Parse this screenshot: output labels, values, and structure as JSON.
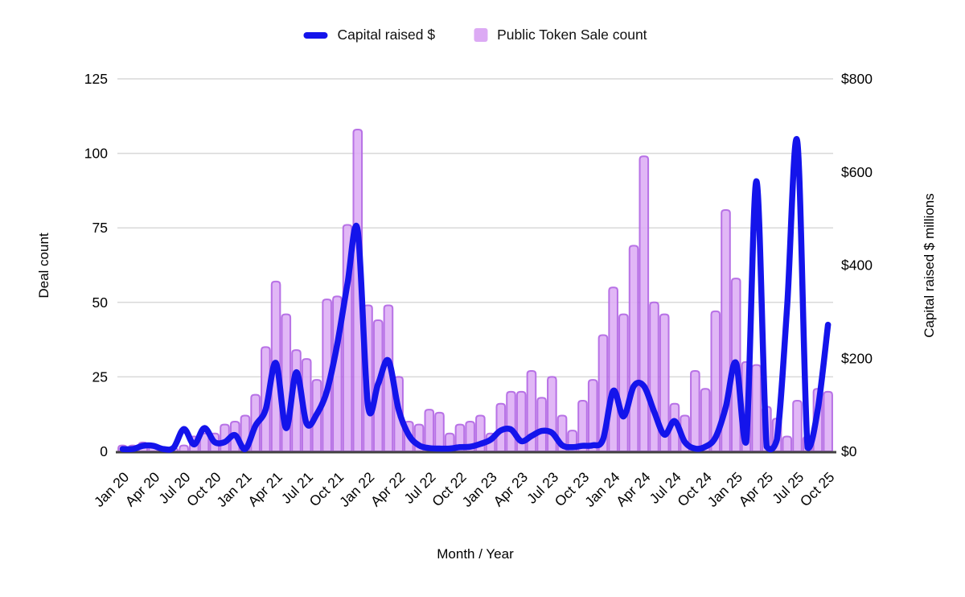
{
  "legend": {
    "items": [
      {
        "label": "Capital raised $",
        "swatch": "line",
        "color": "#1414eb"
      },
      {
        "label": "Public Token Sale count",
        "swatch": "square",
        "color": "#dcaaf4"
      }
    ]
  },
  "axes": {
    "left_title": "Deal count",
    "right_title": "Capital raised $ millions",
    "x_title": "Month / Year"
  },
  "colors": {
    "line": "#1414eb",
    "bar_fill": "#dcaaf4",
    "bar_border": "#b166e3",
    "gridline": "#d9d9d9",
    "axis_line": "#424242",
    "text": "#000000"
  },
  "chart_data": {
    "type": "combo-bar-line",
    "title": "",
    "xlabel": "Month / Year",
    "grid": true,
    "legend_position": "top",
    "x_tick_every": 3,
    "left_axis": {
      "label": "Deal count",
      "min": 0,
      "max": 125,
      "ticks": [
        0,
        25,
        50,
        75,
        100,
        125
      ]
    },
    "right_axis": {
      "label": "Capital raised $ millions",
      "min": 0,
      "max": 800,
      "ticks": [
        0,
        200,
        400,
        600,
        800
      ],
      "tick_labels": [
        "$0",
        "$200",
        "$400",
        "$600",
        "$800"
      ]
    },
    "categories": [
      "Jan 20",
      "Feb 20",
      "Mar 20",
      "Apr 20",
      "May 20",
      "Jun 20",
      "Jul 20",
      "Aug 20",
      "Sep 20",
      "Oct 20",
      "Nov 20",
      "Dec 20",
      "Jan 21",
      "Feb 21",
      "Mar 21",
      "Apr 21",
      "May 21",
      "Jun 21",
      "Jul 21",
      "Aug 21",
      "Sep 21",
      "Oct 21",
      "Nov 21",
      "Dec 21",
      "Jan 22",
      "Feb 22",
      "Mar 22",
      "Apr 22",
      "May 22",
      "Jun 22",
      "Jul 22",
      "Aug 22",
      "Sep 22",
      "Oct 22",
      "Nov 22",
      "Dec 22",
      "Jan 23",
      "Feb 23",
      "Mar 23",
      "Apr 23",
      "May 23",
      "Jun 23",
      "Jul 23",
      "Aug 23",
      "Sep 23",
      "Oct 23",
      "Nov 23",
      "Dec 23",
      "Jan 24",
      "Feb 24",
      "Mar 24",
      "Apr 24",
      "May 24",
      "Jun 24",
      "Jul 24",
      "Aug 24",
      "Sep 24",
      "Oct 24",
      "Nov 24",
      "Dec 24",
      "Jan 25",
      "Feb 25",
      "Mar 25",
      "Apr 25",
      "May 25",
      "Jun 25",
      "Jul 25",
      "Aug 25",
      "Sep 25",
      "Oct 25"
    ],
    "series": [
      {
        "name": "Public Token Sale count",
        "type": "bar",
        "y_axis": "left",
        "values": [
          2,
          2,
          3,
          2,
          1,
          1,
          2,
          5,
          6,
          6,
          9,
          10,
          12,
          19,
          35,
          57,
          46,
          34,
          31,
          24,
          51,
          52,
          76,
          108,
          49,
          44,
          49,
          25,
          10,
          9,
          14,
          13,
          6,
          9,
          10,
          12,
          6,
          16,
          20,
          20,
          27,
          18,
          25,
          12,
          7,
          17,
          24,
          39,
          55,
          46,
          69,
          99,
          50,
          46,
          16,
          12,
          27,
          21,
          47,
          81,
          58,
          30,
          29,
          15,
          11,
          5,
          17,
          5,
          21,
          20
        ]
      },
      {
        "name": "Capital raised $",
        "type": "line",
        "y_axis": "right",
        "values": [
          5,
          5,
          12,
          12,
          5,
          8,
          48,
          15,
          50,
          20,
          20,
          35,
          5,
          55,
          90,
          190,
          50,
          170,
          60,
          80,
          130,
          230,
          360,
          475,
          100,
          145,
          195,
          90,
          35,
          13,
          7,
          6,
          6,
          9,
          10,
          16,
          25,
          45,
          47,
          22,
          33,
          44,
          40,
          13,
          9,
          12,
          13,
          26,
          130,
          75,
          140,
          140,
          85,
          36,
          65,
          20,
          6,
          10,
          30,
          95,
          190,
          20,
          580,
          10,
          25,
          310,
          665,
          8,
          90,
          272
        ]
      }
    ]
  }
}
